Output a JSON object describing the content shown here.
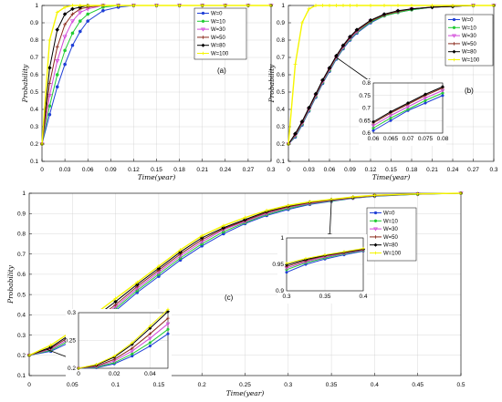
{
  "chart_data": [
    {
      "type": "line",
      "panel_label": "(a)",
      "xlabel": "Time(year)",
      "ylabel": "Probability",
      "xlim": [
        0,
        0.3
      ],
      "ylim": [
        0.1,
        1
      ],
      "xticks": [
        "0",
        "0.03",
        "0.06",
        "0.09",
        "0.12",
        "0.15",
        "0.18",
        "0.21",
        "0.24",
        "0.27",
        "0.3"
      ],
      "yticks": [
        "0.1",
        "0.2",
        "0.3",
        "0.4",
        "0.5",
        "0.6",
        "0.7",
        "0.8",
        "0.9",
        "1"
      ],
      "legend_position": "top-right",
      "x": [
        0,
        0.01,
        0.02,
        0.03,
        0.04,
        0.05,
        0.06,
        0.08,
        0.1,
        0.12,
        0.15,
        0.18,
        0.21,
        0.24,
        0.27,
        0.3
      ],
      "series": [
        {
          "name": "W=0",
          "color": "#1f3fd6",
          "marker": "circle",
          "values": [
            0.2,
            0.37,
            0.53,
            0.66,
            0.77,
            0.85,
            0.91,
            0.97,
            0.99,
            1,
            1,
            1,
            1,
            1,
            1,
            1
          ]
        },
        {
          "name": "W=10",
          "color": "#22cc33",
          "marker": "circle",
          "values": [
            0.2,
            0.42,
            0.6,
            0.74,
            0.84,
            0.91,
            0.95,
            0.99,
            1,
            1,
            1,
            1,
            1,
            1,
            1,
            1
          ]
        },
        {
          "name": "W=30",
          "color": "#d247d9",
          "marker": "triangle",
          "values": [
            0.2,
            0.48,
            0.68,
            0.82,
            0.91,
            0.96,
            0.98,
            1,
            1,
            1,
            1,
            1,
            1,
            1,
            1,
            1
          ]
        },
        {
          "name": "W=50",
          "color": "#8a2a1c",
          "marker": "plus",
          "values": [
            0.2,
            0.55,
            0.76,
            0.89,
            0.95,
            0.98,
            0.99,
            1,
            1,
            1,
            1,
            1,
            1,
            1,
            1,
            1
          ]
        },
        {
          "name": "W=80",
          "color": "#000000",
          "marker": "diamond",
          "values": [
            0.2,
            0.64,
            0.86,
            0.95,
            0.98,
            0.99,
            1,
            1,
            1,
            1,
            1,
            1,
            1,
            1,
            1,
            1
          ]
        },
        {
          "name": "W=100",
          "color": "#f5f500",
          "marker": "plus",
          "values": [
            0.2,
            0.8,
            0.96,
            0.99,
            1,
            1,
            1,
            1,
            1,
            1,
            1,
            1,
            1,
            1,
            1,
            1
          ]
        }
      ]
    },
    {
      "type": "line",
      "panel_label": "(b)",
      "xlabel": "Time(year)",
      "ylabel": "Probability",
      "xlim": [
        0,
        0.3
      ],
      "ylim": [
        0.1,
        1
      ],
      "xticks": [
        "0",
        "0.03",
        "0.06",
        "0.09",
        "0.12",
        "0.15",
        "0.18",
        "0.21",
        "0.24",
        "0.27",
        "0.3"
      ],
      "yticks": [
        "0.1",
        "0.2",
        "0.3",
        "0.4",
        "0.5",
        "0.6",
        "0.7",
        "0.8",
        "0.9",
        "1"
      ],
      "legend_position": "top-right",
      "x": [
        0,
        0.01,
        0.02,
        0.03,
        0.04,
        0.05,
        0.06,
        0.07,
        0.08,
        0.09,
        0.1,
        0.12,
        0.14,
        0.16,
        0.18,
        0.21,
        0.24,
        0.27,
        0.3
      ],
      "series": [
        {
          "name": "W=0",
          "color": "#1f3fd6",
          "marker": "circle",
          "values": [
            0.2,
            0.24,
            0.31,
            0.39,
            0.47,
            0.55,
            0.62,
            0.69,
            0.75,
            0.8,
            0.84,
            0.9,
            0.94,
            0.96,
            0.975,
            0.99,
            0.995,
            1,
            1
          ]
        },
        {
          "name": "W=10",
          "color": "#22cc33",
          "marker": "circle",
          "values": [
            0.2,
            0.245,
            0.315,
            0.395,
            0.475,
            0.555,
            0.625,
            0.695,
            0.755,
            0.805,
            0.845,
            0.905,
            0.94,
            0.96,
            0.975,
            0.99,
            0.995,
            1,
            1
          ]
        },
        {
          "name": "W=30",
          "color": "#d247d9",
          "marker": "triangle",
          "values": [
            0.2,
            0.25,
            0.32,
            0.4,
            0.48,
            0.56,
            0.63,
            0.7,
            0.76,
            0.81,
            0.85,
            0.91,
            0.945,
            0.965,
            0.98,
            0.99,
            0.995,
            1,
            1
          ]
        },
        {
          "name": "W=50",
          "color": "#8a2a1c",
          "marker": "plus",
          "values": [
            0.2,
            0.255,
            0.325,
            0.405,
            0.485,
            0.565,
            0.635,
            0.705,
            0.765,
            0.815,
            0.855,
            0.91,
            0.945,
            0.965,
            0.98,
            0.99,
            0.995,
            1,
            1
          ]
        },
        {
          "name": "W=80",
          "color": "#000000",
          "marker": "diamond",
          "values": [
            0.2,
            0.26,
            0.33,
            0.41,
            0.49,
            0.57,
            0.64,
            0.71,
            0.77,
            0.82,
            0.86,
            0.915,
            0.95,
            0.97,
            0.98,
            0.99,
            0.995,
            1,
            1
          ]
        },
        {
          "name": "W=100",
          "color": "#f5f500",
          "marker": "plus",
          "values": [
            0.2,
            0.66,
            0.9,
            0.98,
            1,
            1,
            1,
            1,
            1,
            1,
            1,
            1,
            1,
            1,
            1,
            1,
            1,
            1,
            1
          ]
        }
      ],
      "inset": {
        "xlim": [
          0.06,
          0.08
        ],
        "ylim": [
          0.6,
          0.8
        ],
        "xticks": [
          "0.06",
          "0.065",
          "0.07",
          "0.075",
          "0.08"
        ],
        "yticks": [
          "0.6",
          "0.65",
          "0.7",
          "0.75",
          "0.8"
        ],
        "x": [
          0.06,
          0.065,
          0.07,
          0.075,
          0.08
        ],
        "series": [
          {
            "name": "W=0",
            "values": [
              0.61,
              0.65,
              0.69,
              0.72,
              0.75
            ]
          },
          {
            "name": "W=10",
            "values": [
              0.62,
              0.66,
              0.695,
              0.73,
              0.76
            ]
          },
          {
            "name": "W=30",
            "values": [
              0.63,
              0.67,
              0.705,
              0.74,
              0.77
            ]
          },
          {
            "name": "W=50",
            "values": [
              0.64,
              0.68,
              0.715,
              0.75,
              0.78
            ]
          },
          {
            "name": "W=80",
            "values": [
              0.645,
              0.685,
              0.72,
              0.755,
              0.785
            ]
          }
        ]
      }
    },
    {
      "type": "line",
      "panel_label": "(c)",
      "xlabel": "Time(year)",
      "ylabel": "Probability",
      "xlim": [
        0,
        0.5
      ],
      "ylim": [
        0.1,
        1
      ],
      "xticks": [
        "0",
        "0.05",
        "0.1",
        "0.15",
        "0.2",
        "0.25",
        "0.3",
        "0.35",
        "0.4",
        "0.45",
        "0.5"
      ],
      "yticks": [
        "0.1",
        "0.2",
        "0.3",
        "0.4",
        "0.5",
        "0.6",
        "0.7",
        "0.8",
        "0.9",
        "1"
      ],
      "legend_position": "top-right",
      "x": [
        0,
        0.025,
        0.05,
        0.075,
        0.1,
        0.125,
        0.15,
        0.175,
        0.2,
        0.225,
        0.25,
        0.275,
        0.3,
        0.325,
        0.35,
        0.375,
        0.4,
        0.45,
        0.5
      ],
      "series": [
        {
          "name": "W=0",
          "color": "#1f3fd6",
          "marker": "circle",
          "values": [
            0.2,
            0.22,
            0.27,
            0.34,
            0.42,
            0.51,
            0.59,
            0.67,
            0.74,
            0.8,
            0.85,
            0.89,
            0.92,
            0.945,
            0.96,
            0.975,
            0.985,
            0.995,
            1
          ]
        },
        {
          "name": "W=10",
          "color": "#22cc33",
          "marker": "circle",
          "values": [
            0.2,
            0.225,
            0.28,
            0.35,
            0.43,
            0.52,
            0.6,
            0.68,
            0.75,
            0.81,
            0.855,
            0.895,
            0.925,
            0.948,
            0.962,
            0.976,
            0.986,
            0.995,
            1
          ]
        },
        {
          "name": "W=30",
          "color": "#d247d9",
          "marker": "triangle",
          "values": [
            0.2,
            0.23,
            0.29,
            0.36,
            0.44,
            0.53,
            0.61,
            0.69,
            0.76,
            0.82,
            0.86,
            0.9,
            0.93,
            0.95,
            0.964,
            0.977,
            0.987,
            0.996,
            1
          ]
        },
        {
          "name": "W=50",
          "color": "#8a2a1c",
          "marker": "plus",
          "values": [
            0.2,
            0.235,
            0.3,
            0.37,
            0.45,
            0.54,
            0.62,
            0.7,
            0.77,
            0.825,
            0.865,
            0.905,
            0.933,
            0.953,
            0.966,
            0.978,
            0.988,
            0.996,
            1
          ]
        },
        {
          "name": "W=80",
          "color": "#000000",
          "marker": "diamond",
          "values": [
            0.2,
            0.24,
            0.31,
            0.385,
            0.465,
            0.55,
            0.63,
            0.71,
            0.78,
            0.83,
            0.87,
            0.91,
            0.937,
            0.956,
            0.968,
            0.98,
            0.99,
            0.997,
            1
          ]
        },
        {
          "name": "W=100",
          "color": "#f5f500",
          "marker": "plus",
          "values": [
            0.2,
            0.25,
            0.32,
            0.4,
            0.48,
            0.56,
            0.64,
            0.72,
            0.79,
            0.84,
            0.88,
            0.915,
            0.94,
            0.958,
            0.97,
            0.982,
            0.99,
            0.997,
            1
          ]
        }
      ],
      "insets": [
        {
          "xlim": [
            0.3,
            0.4
          ],
          "ylim": [
            0.9,
            1
          ],
          "xticks": [
            "0.3",
            "0.35",
            "0.4"
          ],
          "yticks": [
            "0.9",
            "0.95",
            "1"
          ],
          "x": [
            0.3,
            0.325,
            0.35,
            0.375,
            0.4
          ],
          "series": [
            {
              "name": "W=0",
              "values": [
                0.935,
                0.95,
                0.96,
                0.968,
                0.975
              ]
            },
            {
              "name": "W=10",
              "values": [
                0.94,
                0.953,
                0.962,
                0.97,
                0.976
              ]
            },
            {
              "name": "W=30",
              "values": [
                0.943,
                0.955,
                0.964,
                0.971,
                0.977
              ]
            },
            {
              "name": "W=50",
              "values": [
                0.946,
                0.957,
                0.966,
                0.972,
                0.978
              ]
            },
            {
              "name": "W=80",
              "values": [
                0.949,
                0.959,
                0.967,
                0.973,
                0.979
              ]
            },
            {
              "name": "W=100",
              "values": [
                0.952,
                0.961,
                0.968,
                0.974,
                0.98
              ]
            }
          ]
        },
        {
          "xlim": [
            0,
            0.05
          ],
          "ylim": [
            0.2,
            0.3
          ],
          "xticks": [
            "0",
            "0.02",
            "0.04"
          ],
          "yticks": [
            "0.2",
            "0.25",
            "0.3"
          ],
          "x": [
            0,
            0.01,
            0.02,
            0.03,
            0.04,
            0.05
          ],
          "series": [
            {
              "name": "W=0",
              "values": [
                0.2,
                0.201,
                0.208,
                0.222,
                0.24,
                0.262
              ]
            },
            {
              "name": "W=10",
              "values": [
                0.2,
                0.202,
                0.21,
                0.226,
                0.246,
                0.27
              ]
            },
            {
              "name": "W=30",
              "values": [
                0.2,
                0.203,
                0.213,
                0.231,
                0.254,
                0.28
              ]
            },
            {
              "name": "W=50",
              "values": [
                0.2,
                0.204,
                0.216,
                0.236,
                0.262,
                0.29
              ]
            },
            {
              "name": "W=80",
              "values": [
                0.2,
                0.206,
                0.22,
                0.243,
                0.272,
                0.302
              ]
            },
            {
              "name": "W=100",
              "values": [
                0.2,
                0.207,
                0.222,
                0.246,
                0.276,
                0.306
              ]
            }
          ]
        }
      ]
    }
  ]
}
